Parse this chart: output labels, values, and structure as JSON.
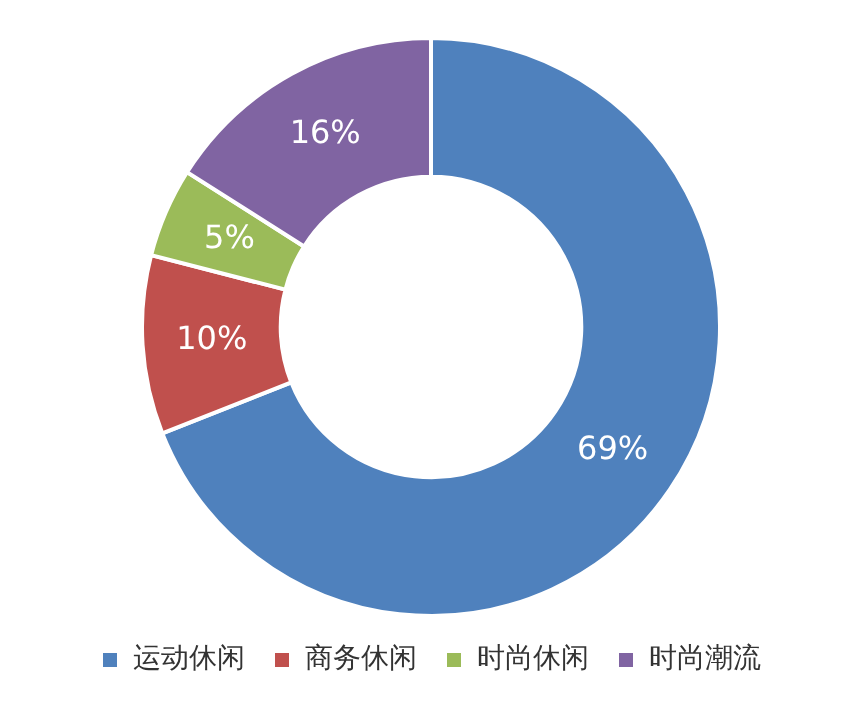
{
  "chart_data": {
    "type": "donut",
    "categories": [
      "运动休闲",
      "商务休闲",
      "时尚休闲",
      "时尚潮流"
    ],
    "values": [
      69,
      10,
      5,
      16
    ],
    "colors": [
      "#4f81bd",
      "#c0504d",
      "#9bbb59",
      "#8064a2"
    ],
    "value_labels": [
      "69%",
      "10%",
      "5%",
      "16%"
    ],
    "legend": "bottom"
  }
}
